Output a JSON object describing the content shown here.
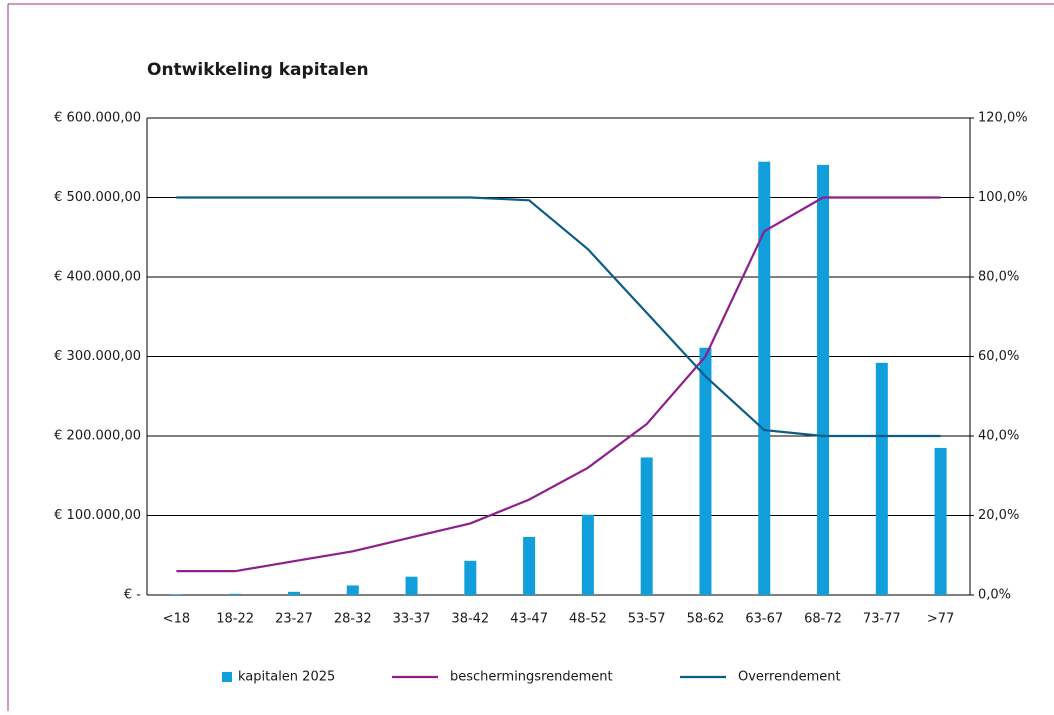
{
  "chart_data": {
    "type": "bar_line",
    "title": "Ontwikkeling kapitalen",
    "categories": [
      "<18",
      "18-22",
      "23-27",
      "28-32",
      "33-37",
      "38-42",
      "43-47",
      "48-52",
      "53-57",
      "58-62",
      "63-67",
      "68-72",
      "73-77",
      ">77"
    ],
    "series": [
      {
        "name": "kapitalen 2025",
        "type": "bar",
        "color": "#119fdc",
        "values": [
          1000,
          1500,
          4000,
          12000,
          23000,
          43000,
          73000,
          101000,
          173000,
          311000,
          545000,
          541000,
          292000,
          185000
        ]
      },
      {
        "name": "beschermingsrendement",
        "type": "line",
        "axis": "y2",
        "color": "#8e1f8c",
        "values": [
          6,
          6,
          8.5,
          11,
          14.5,
          18,
          24,
          32,
          43,
          60,
          91.5,
          100,
          100,
          100
        ]
      },
      {
        "name": "Overrendement",
        "type": "line",
        "axis": "y2",
        "color": "#0e5b85",
        "values": [
          100,
          100,
          100,
          100,
          100,
          100,
          99.3,
          87,
          71,
          55,
          41.5,
          40,
          40,
          40
        ]
      }
    ],
    "ylim": [
      0,
      600000
    ],
    "yticks": [
      {
        "value": 0,
        "label": "€ -"
      },
      {
        "value": 100000,
        "label": "€ 100.000,00"
      },
      {
        "value": 200000,
        "label": "€ 200.000,00"
      },
      {
        "value": 300000,
        "label": "€ 300.000,00"
      },
      {
        "value": 400000,
        "label": "€ 400.000,00"
      },
      {
        "value": 500000,
        "label": "€ 500.000,00"
      },
      {
        "value": 600000,
        "label": "€ 600.000,00"
      }
    ],
    "y2lim": [
      0,
      120
    ],
    "y2ticks": [
      {
        "value": 0,
        "label": "0,0%"
      },
      {
        "value": 20,
        "label": "20,0%"
      },
      {
        "value": 40,
        "label": "40,0%"
      },
      {
        "value": 60,
        "label": "60,0%"
      },
      {
        "value": 80,
        "label": "80,0%"
      },
      {
        "value": 100,
        "label": "100,0%"
      },
      {
        "value": 120,
        "label": "120,0%"
      }
    ],
    "grid": true,
    "legend": "bottom"
  }
}
